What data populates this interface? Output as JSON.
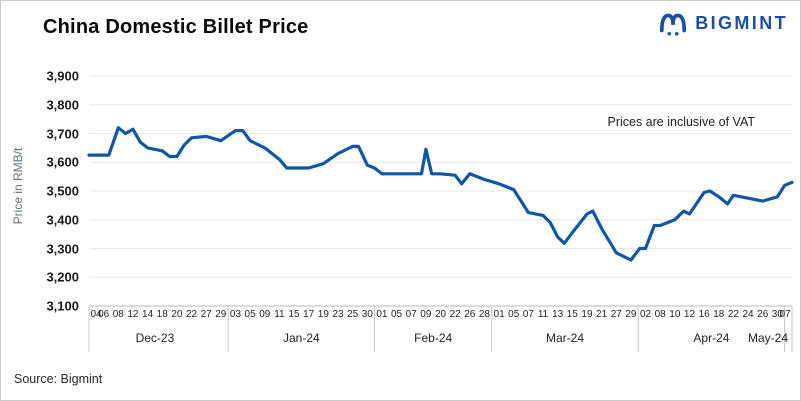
{
  "header": {
    "title": "China Domestic Billet Price",
    "brand": {
      "name": "BIGMINT",
      "logo_icon": "bigmint-m-icon"
    }
  },
  "annotation": {
    "text": "Prices are inclusive of VAT"
  },
  "footer": {
    "source": "Source: Bigmint"
  },
  "colors": {
    "line": "#0e56a6",
    "brand_blue": "#1a4fa8",
    "grid": "#e7e7e7",
    "axis": "#b9b9b9",
    "divider": "#c4c4c4",
    "text_dark": "#1a1a1a",
    "text_muted": "#66707c"
  },
  "chart_data": {
    "type": "line",
    "title": "China Domestic Billet Price",
    "ylabel": "Price in RMB/t",
    "ylim": [
      3100,
      3900
    ],
    "ytick_labels": [
      "3,900",
      "3,800",
      "3,700",
      "3,600",
      "3,500",
      "3,400",
      "3,300",
      "3,200",
      "3,100"
    ],
    "grid": "horizontal-only",
    "legend": "none",
    "annotation": "Prices are inclusive of VAT",
    "x_months": [
      {
        "label": "Dec-23",
        "day_ticks": [
          "04",
          "06",
          "08",
          "12",
          "14",
          "18",
          "20",
          "22",
          "27",
          "29"
        ]
      },
      {
        "label": "Jan-24",
        "day_ticks": [
          "03",
          "05",
          "09",
          "11",
          "15",
          "17",
          "19",
          "23",
          "25",
          "30"
        ]
      },
      {
        "label": "Feb-24",
        "day_ticks": [
          "01",
          "05",
          "07",
          "09",
          "20",
          "22",
          "26",
          "28"
        ]
      },
      {
        "label": "Mar-24",
        "day_ticks": [
          "01",
          "05",
          "07",
          "11",
          "13",
          "15",
          "19",
          "21",
          "27",
          "29"
        ]
      },
      {
        "label": "Apr-24",
        "day_ticks": [
          "02",
          "08",
          "10",
          "12",
          "16",
          "18",
          "22",
          "24",
          "26",
          "30"
        ]
      },
      {
        "label": "May-24",
        "day_ticks": [
          "07"
        ]
      }
    ],
    "points_encoding": "[day_tick_index_0_to_48, price_rmb_per_t]",
    "series": [
      {
        "name": "China domestic billet price (incl. VAT)",
        "color": "#0e56a6",
        "points": [
          [
            0,
            3625
          ],
          [
            1,
            3625
          ],
          [
            1.35,
            3625
          ],
          [
            2,
            3720
          ],
          [
            2.5,
            3700
          ],
          [
            3,
            3715
          ],
          [
            3.5,
            3670
          ],
          [
            4,
            3650
          ],
          [
            5,
            3640
          ],
          [
            5.5,
            3620
          ],
          [
            6,
            3620
          ],
          [
            6.5,
            3660
          ],
          [
            7,
            3685
          ],
          [
            8,
            3690
          ],
          [
            9,
            3675
          ],
          [
            10,
            3710
          ],
          [
            10.5,
            3710
          ],
          [
            11,
            3675
          ],
          [
            12,
            3650
          ],
          [
            13,
            3610
          ],
          [
            13.5,
            3580
          ],
          [
            14,
            3580
          ],
          [
            15,
            3580
          ],
          [
            16,
            3595
          ],
          [
            17,
            3630
          ],
          [
            18,
            3655
          ],
          [
            18.4,
            3655
          ],
          [
            19,
            3590
          ],
          [
            19.5,
            3580
          ],
          [
            20,
            3560
          ],
          [
            21,
            3560
          ],
          [
            22,
            3560
          ],
          [
            22.7,
            3560
          ],
          [
            23,
            3645
          ],
          [
            23.4,
            3560
          ],
          [
            24,
            3560
          ],
          [
            25,
            3555
          ],
          [
            25.45,
            3525
          ],
          [
            26,
            3560
          ],
          [
            27,
            3540
          ],
          [
            28,
            3525
          ],
          [
            29,
            3505
          ],
          [
            29.5,
            3465
          ],
          [
            30,
            3425
          ],
          [
            31,
            3415
          ],
          [
            31.5,
            3390
          ],
          [
            32,
            3340
          ],
          [
            32.45,
            3318
          ],
          [
            33,
            3355
          ],
          [
            34,
            3420
          ],
          [
            34.4,
            3430
          ],
          [
            35,
            3370
          ],
          [
            36,
            3285
          ],
          [
            37,
            3260
          ],
          [
            37.6,
            3300
          ],
          [
            38,
            3300
          ],
          [
            38.6,
            3380
          ],
          [
            39,
            3380
          ],
          [
            40,
            3400
          ],
          [
            40.6,
            3430
          ],
          [
            41,
            3420
          ],
          [
            42,
            3495
          ],
          [
            42.4,
            3500
          ],
          [
            43,
            3480
          ],
          [
            43.6,
            3455
          ],
          [
            44,
            3485
          ],
          [
            45,
            3475
          ],
          [
            46,
            3465
          ],
          [
            47,
            3480
          ],
          [
            47.5,
            3520
          ],
          [
            48,
            3530
          ]
        ]
      }
    ]
  }
}
